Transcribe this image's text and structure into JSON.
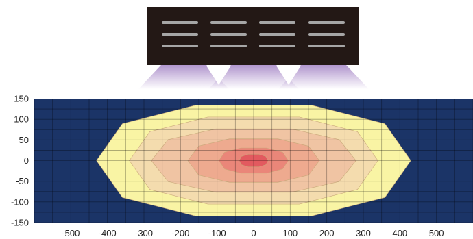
{
  "chart_data": {
    "type": "heatmap",
    "subtype": "filled contour map (beam illuminance footprint)",
    "title": "",
    "xlabel": "",
    "ylabel": "",
    "xlim": [
      -600,
      600
    ],
    "ylim": [
      -150,
      150
    ],
    "x_ticks": [
      -500,
      -400,
      -300,
      -200,
      -100,
      0,
      100,
      200,
      300,
      400,
      500
    ],
    "y_ticks": [
      150,
      100,
      50,
      0,
      -50,
      -100,
      -150
    ],
    "grid": "on",
    "background_color": "#1b3467",
    "contour_levels": [
      {
        "level": 1,
        "color": "#f9f4a4",
        "x_half_extent": 430,
        "y_half_extent": 140
      },
      {
        "level": 2,
        "color": "#f4dcae",
        "x_half_extent": 340,
        "y_half_extent": 110
      },
      {
        "level": 3,
        "color": "#f0c4a3",
        "x_half_extent": 280,
        "y_half_extent": 80
      },
      {
        "level": 4,
        "color": "#eeaa8f",
        "x_half_extent": 180,
        "y_half_extent": 55
      },
      {
        "level": 5,
        "color": "#ea8679",
        "x_half_extent": 95,
        "y_half_extent": 32
      },
      {
        "level": 6,
        "color": "#e25a5f",
        "x_half_extent": 40,
        "y_half_extent": 16
      }
    ],
    "fixture": {
      "body_color": "#231815",
      "led_bar_color": "#a6a6a6",
      "led_rows": 3,
      "led_columns": 4,
      "beam_color": "#a88ac8",
      "beam_count": 3
    }
  }
}
